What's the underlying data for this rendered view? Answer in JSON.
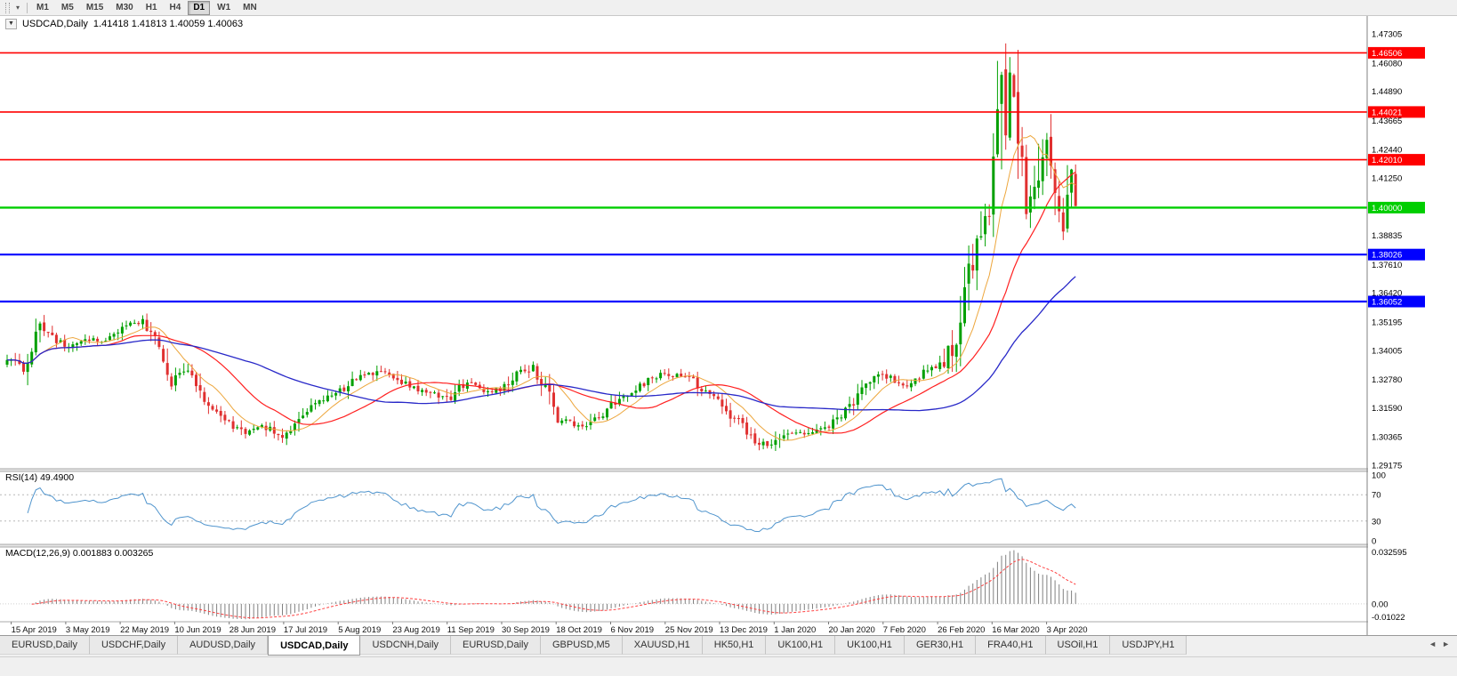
{
  "toolbar": {
    "timeframes": [
      "M1",
      "M5",
      "M15",
      "M30",
      "H1",
      "H4",
      "D1",
      "W1",
      "MN"
    ],
    "active": "D1",
    "chart_type_icon": "▾"
  },
  "chart_title": {
    "collapse_icon": "▼",
    "symbol": "USDCAD,Daily",
    "ohlc": "1.41418 1.41813 1.40059 1.40063"
  },
  "chart_data": {
    "type": "candlestick",
    "symbol": "USDCAD",
    "timeframe": "Daily",
    "title": "USDCAD,Daily",
    "price_range": [
      1.29175,
      1.47305
    ],
    "bars": 261,
    "anchors": [
      [
        0,
        1.336
      ],
      [
        4,
        1.3325
      ],
      [
        8,
        1.349
      ],
      [
        14,
        1.342
      ],
      [
        19,
        1.344
      ],
      [
        24,
        1.345
      ],
      [
        29,
        1.35
      ],
      [
        33,
        1.352
      ],
      [
        36,
        1.346
      ],
      [
        40,
        1.327
      ],
      [
        44,
        1.333
      ],
      [
        48,
        1.319
      ],
      [
        54,
        1.3095
      ],
      [
        58,
        1.306
      ],
      [
        62,
        1.308
      ],
      [
        67,
        1.304
      ],
      [
        73,
        1.316
      ],
      [
        80,
        1.3215
      ],
      [
        87,
        1.331
      ],
      [
        94,
        1.329
      ],
      [
        98,
        1.3245
      ],
      [
        102,
        1.323
      ],
      [
        107,
        1.319
      ],
      [
        112,
        1.327
      ],
      [
        116,
        1.3235
      ],
      [
        120,
        1.324
      ],
      [
        124,
        1.33
      ],
      [
        128,
        1.333
      ],
      [
        131,
        1.324
      ],
      [
        134,
        1.3125
      ],
      [
        138,
        1.309
      ],
      [
        141,
        1.308
      ],
      [
        147,
        1.3165
      ],
      [
        152,
        1.323
      ],
      [
        156,
        1.327
      ],
      [
        160,
        1.33
      ],
      [
        166,
        1.328
      ],
      [
        170,
        1.323
      ],
      [
        174,
        1.3165
      ],
      [
        179,
        1.308
      ],
      [
        183,
        1.301
      ],
      [
        186,
        1.299
      ],
      [
        191,
        1.307
      ],
      [
        195,
        1.3055
      ],
      [
        199,
        1.307
      ],
      [
        205,
        1.316
      ],
      [
        209,
        1.325
      ],
      [
        213,
        1.3305
      ],
      [
        218,
        1.3255
      ],
      [
        222,
        1.329
      ],
      [
        226,
        1.334
      ],
      [
        231,
        1.341
      ],
      [
        234,
        1.37
      ],
      [
        237,
        1.392
      ],
      [
        239,
        1.3998
      ],
      [
        241,
        1.435
      ],
      [
        242,
        1.465
      ],
      [
        243,
        1.443
      ],
      [
        244,
        1.451
      ],
      [
        245,
        1.448
      ],
      [
        246,
        1.43
      ],
      [
        247,
        1.412
      ],
      [
        248,
        1.399
      ],
      [
        250,
        1.406
      ],
      [
        251,
        1.421
      ],
      [
        253,
        1.425
      ],
      [
        254,
        1.415
      ],
      [
        255,
        1.402
      ],
      [
        256,
        1.396
      ],
      [
        257,
        1.392
      ],
      [
        258,
        1.408
      ],
      [
        259,
        1.4145
      ],
      [
        260,
        1.40063
      ]
    ],
    "axis_ticks": [
      1.47305,
      1.4608,
      1.4489,
      1.43665,
      1.4244,
      1.4125,
      1.38835,
      1.3761,
      1.3642,
      1.35195,
      1.34005,
      1.3278,
      1.3159,
      1.30365,
      1.29175
    ],
    "hlines": [
      {
        "price": 1.46506,
        "color": "#FF0000",
        "width": 1.6
      },
      {
        "price": 1.44021,
        "color": "#FF0000",
        "width": 1.6
      },
      {
        "price": 1.4201,
        "color": "#FF0000",
        "width": 1.6
      },
      {
        "price": 1.4,
        "color": "#00CE00",
        "width": 2.4
      },
      {
        "price": 1.38026,
        "color": "#0000FF",
        "width": 2.2
      },
      {
        "price": 1.36052,
        "color": "#0000FF",
        "width": 2.2
      }
    ],
    "ma_periods": {
      "fast": 10,
      "medium": 25,
      "slow": 55
    },
    "date_labels": [
      "15 Apr 2019",
      "3 May 2019",
      "22 May 2019",
      "10 Jun 2019",
      "28 Jun 2019",
      "17 Jul 2019",
      "5 Aug 2019",
      "23 Aug 2019",
      "11 Sep 2019",
      "30 Sep 2019",
      "18 Oct 2019",
      "6 Nov 2019",
      "25 Nov 2019",
      "13 Dec 2019",
      "1 Jan 2020",
      "20 Jan 2020",
      "7 Feb 2020",
      "26 Feb 2020",
      "16 Mar 2020",
      "3 Apr 2020"
    ],
    "rsi": {
      "label": "RSI(14) 49.4900",
      "period": 14,
      "value": 49.49,
      "levels": [
        100,
        70,
        30,
        0
      ],
      "dashed_levels": [
        70,
        30
      ]
    },
    "macd": {
      "label": "MACD(12,26,9) 0.001883 0.003265",
      "fast": 12,
      "slow": 26,
      "signal": 9,
      "range": [
        -0.01022,
        0.032595
      ],
      "labels": [
        {
          "t": "0.032595",
          "v": 0.032595
        },
        {
          "t": "0.00",
          "v": 0
        },
        {
          "t": "-0.01022",
          "v": -0.01022
        }
      ]
    },
    "colors": {
      "up": "#00A000",
      "down": "#E03030",
      "ma_fast": "#EDA63C",
      "ma_mid": "#FF2020",
      "ma_slow": "#2828C8",
      "rsi": "#4F94CD",
      "macd_hist": "#808080",
      "macd_signal": "#FF4040",
      "grid": "#b8b8b8"
    }
  },
  "tabs": {
    "items": [
      "EURUSD,Daily",
      "USDCHF,Daily",
      "AUDUSD,Daily",
      "USDCAD,Daily",
      "USDCNH,Daily",
      "EURUSD,Daily",
      "GBPUSD,M5",
      "XAUUSD,H1",
      "HK50,H1",
      "UK100,H1",
      "UK100,H1",
      "GER30,H1",
      "FRA40,H1",
      "USOil,H1",
      "USDJPY,H1"
    ],
    "active_index": 3,
    "scroll_left_icon": "◄",
    "scroll_right_icon": "►"
  }
}
